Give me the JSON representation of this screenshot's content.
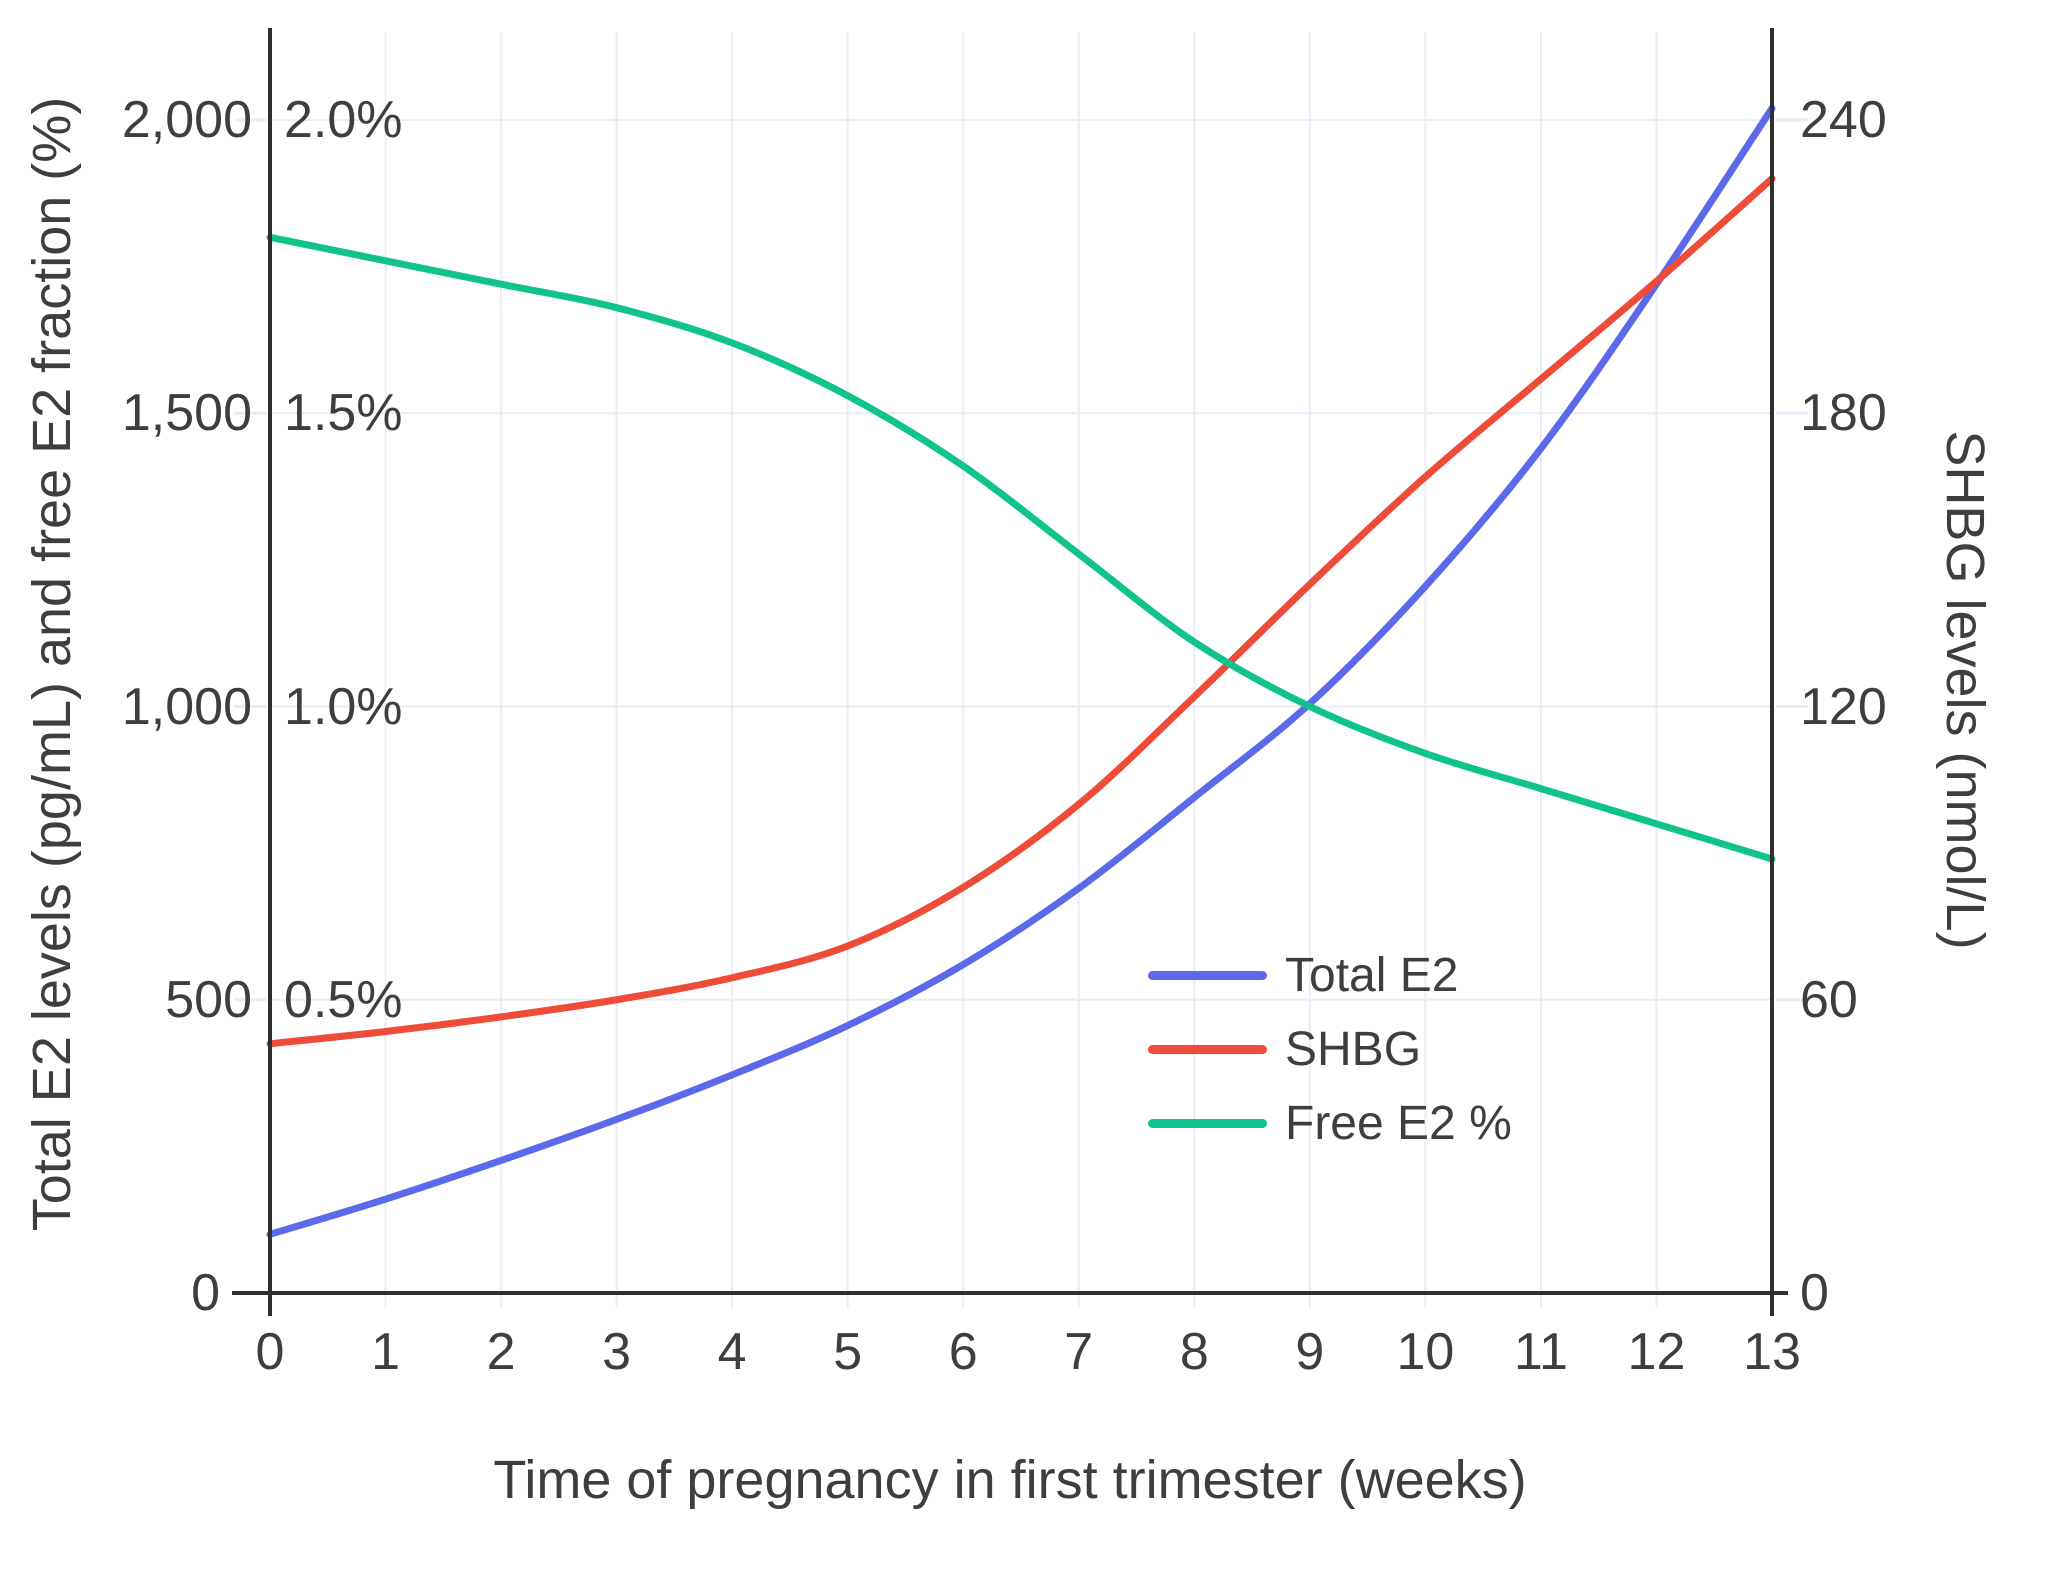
{
  "chart_data": {
    "type": "line",
    "title": "",
    "xlabel": "Time of pregnancy in first trimester (weeks)",
    "ylabel_left": "Total E2 levels (pg/mL) and free E2 fraction (%)",
    "ylabel_right": "SHBG levels (nmol/L)",
    "x": [
      0,
      1,
      2,
      3,
      4,
      5,
      6,
      7,
      8,
      9,
      10,
      11,
      12,
      13
    ],
    "x_tick_labels": [
      "0",
      "1",
      "2",
      "3",
      "4",
      "5",
      "6",
      "7",
      "8",
      "9",
      "10",
      "11",
      "12",
      "13"
    ],
    "left_axis": {
      "range": [
        0,
        2000
      ],
      "ticks": [
        {
          "v": 0,
          "label": "0"
        },
        {
          "v": 500,
          "label": "500"
        },
        {
          "v": 1000,
          "label": "1,000"
        },
        {
          "v": 1500,
          "label": "1,500"
        },
        {
          "v": 2000,
          "label": "2,000"
        }
      ]
    },
    "percent_axis": {
      "ticks": [
        {
          "v": 0.5,
          "label": "0.5%"
        },
        {
          "v": 1.0,
          "label": "1.0%"
        },
        {
          "v": 1.5,
          "label": "1.5%"
        },
        {
          "v": 2.0,
          "label": "2.0%"
        }
      ]
    },
    "right_axis": {
      "range": [
        0,
        240
      ],
      "ticks": [
        {
          "v": 0,
          "label": "0"
        },
        {
          "v": 60,
          "label": "60"
        },
        {
          "v": 120,
          "label": "120"
        },
        {
          "v": 180,
          "label": "180"
        },
        {
          "v": 240,
          "label": "240"
        }
      ]
    },
    "series": [
      {
        "name": "Total E2",
        "axis": "left",
        "color": "#5b6aeb",
        "values": [
          100,
          160,
          226,
          296,
          372,
          456,
          560,
          690,
          845,
          1005,
          1205,
          1440,
          1720,
          2020
        ]
      },
      {
        "name": "SHBG",
        "axis": "right",
        "color": "#ee4b39",
        "values": [
          51,
          53.5,
          56.5,
          60,
          64.5,
          71,
          83,
          100,
          122,
          145,
          167,
          187,
          207,
          228
        ]
      },
      {
        "name": "Free E2 %",
        "axis": "percent",
        "color": "#10c38d",
        "values": [
          1.8,
          1.76,
          1.72,
          1.68,
          1.62,
          1.53,
          1.41,
          1.26,
          1.11,
          1.0,
          0.92,
          0.86,
          0.8,
          0.74
        ]
      }
    ],
    "legend": {
      "position": "inside-right",
      "items": [
        "Total E2",
        "SHBG",
        "Free E2 %"
      ]
    },
    "grid": true,
    "background": "#ffffff",
    "text_color": "#3e3e3e",
    "grid_color": "#e9edf6",
    "axis_color": "#303030"
  }
}
